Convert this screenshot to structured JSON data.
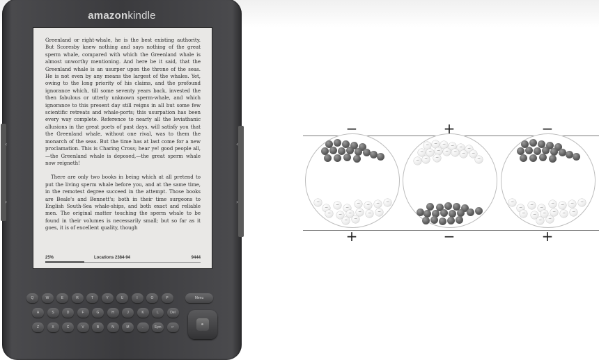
{
  "device": {
    "brand_amazon": "amazon",
    "brand_kindle": "kindle",
    "book_text_para1": "Greenland or right-whale, he is the best existing authority. But Scoresby knew nothing and says nothing of the great sperm whale, compared with which the Greenland whale is almost unworthy mentioning. And here be it said, that the Greenland whale is an usurper upon the throne of the seas. He is not even by any means the largest of the whales. Yet, owing to the long priority of his claims, and the profound ignorance which, till some seventy years back, invested the then fabulous or utterly unknown sperm-whale, and which ignorance to this present day still reigns in all but some few scientific retreats and whale-ports; this usurpation has been every way complete. Reference to nearly all the leviathanic allusions in the great poets of past days, will satisfy you that the Greenland whale, without one rival, was to them the monarch of the seas. But the time has at last come for a new proclamation. This is Charing Cross; hear ye! good people all,—the Greenland whale is deposed,—the great sperm whale now reigneth!",
    "book_text_para2": "There are only two books in being which at all pretend to put the living sperm whale before you, and at the same time, in the remotest degree succeed in the attempt. Those books are Beale's and Bennett's; both in their time surgeons to English South-Sea whale-ships, and both exact and reliable men. The original matter touching the sperm whale to be found in their volumes is necessarily small; but so far as it goes, it is of excellent quality, though",
    "progress_percent": "25%",
    "progress_value": 0.25,
    "locations": "Locations 2384-94",
    "total_locations": "9444",
    "keyboard_row1": [
      "Q",
      "W",
      "E",
      "R",
      "T",
      "Y",
      "U",
      "I",
      "O",
      "P"
    ],
    "menu_key": "Menu",
    "keyboard_row2": [
      "A",
      "S",
      "D",
      "F",
      "G",
      "H",
      "J",
      "K",
      "L",
      "Del"
    ],
    "keyboard_row3": [
      "Z",
      "X",
      "C",
      "V",
      "B",
      "N",
      "M",
      ".",
      "Sym",
      "↵"
    ]
  },
  "diagram": {
    "top_signs": [
      "−",
      "+",
      "−"
    ],
    "bottom_signs": [
      "+",
      "−",
      "+"
    ]
  },
  "colors": {
    "device_body": "#3b3b3e",
    "screen": "#e9e8e6",
    "ball_dark": "#5f5f5f",
    "ball_light": "#ededed"
  }
}
